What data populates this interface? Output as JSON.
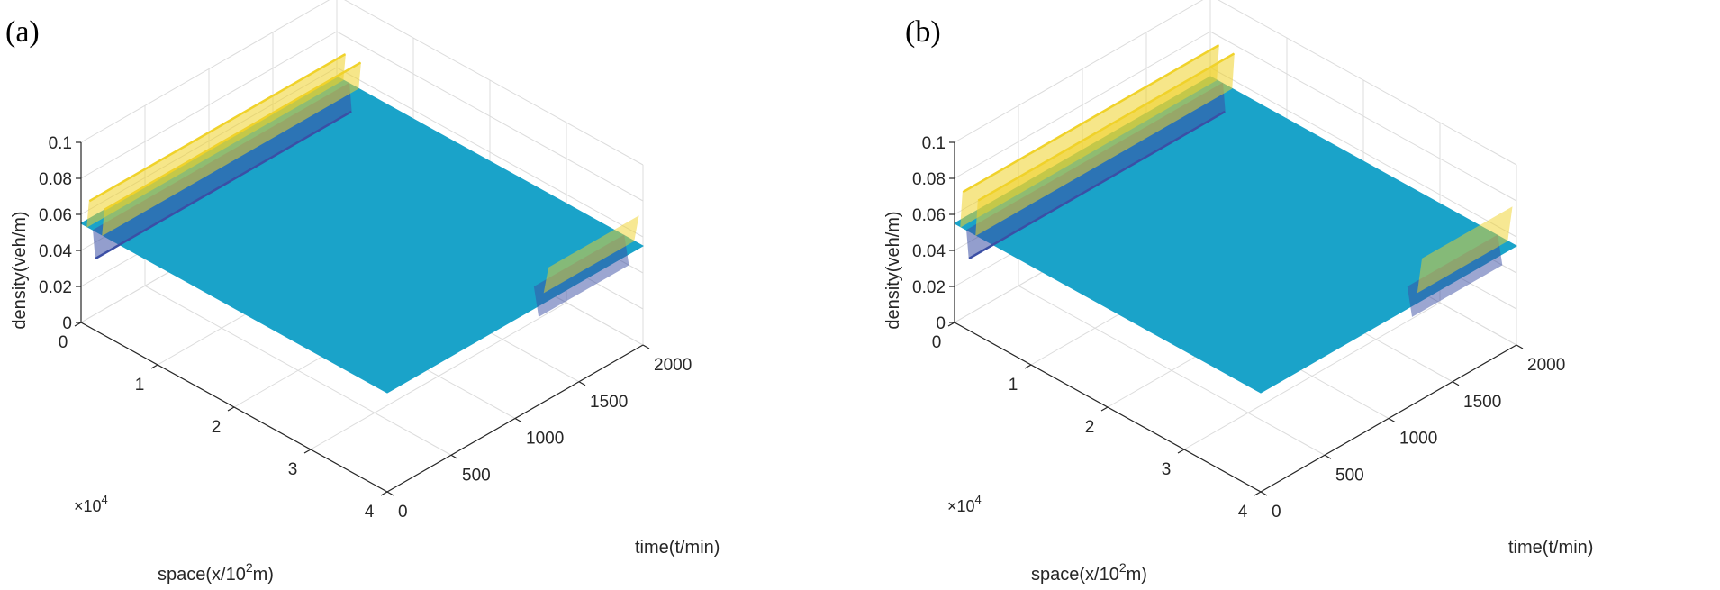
{
  "chart_data": [
    {
      "type": "surface",
      "panel_label": "(a)",
      "xlabel_prefix": "space(x/10",
      "xlabel_sup": "2",
      "xlabel_suffix": "m)",
      "ylabel": "time(t/min)",
      "zlabel": "density(veh/m)",
      "x_multiplier_base": "×10",
      "x_multiplier_exp": "4",
      "x_ticks": [
        "0",
        "1",
        "2",
        "3",
        "4"
      ],
      "y_ticks": [
        "0",
        "500",
        "1000",
        "1500",
        "2000"
      ],
      "z_ticks": [
        "0",
        "0.02",
        "0.04",
        "0.06",
        "0.08",
        "0.1"
      ],
      "xlim": [
        0,
        4
      ],
      "ylim": [
        0,
        2000
      ],
      "zlim": [
        0,
        0.1
      ],
      "grid": true,
      "base_density": 0.055,
      "wave_features": [
        {
          "location": "front edge x≈0",
          "time_start": 0,
          "time_end": 2000,
          "min_density": 0.04,
          "max_density": 0.07
        },
        {
          "location": "back edge x≈4",
          "time_start": 1300,
          "time_end": 2000,
          "min_density": 0.04,
          "max_density": 0.07
        }
      ],
      "colors": {
        "surface": "#1aa3c9",
        "high": "#f0d22a",
        "low": "#3b4fa5"
      }
    },
    {
      "type": "surface",
      "panel_label": "(b)",
      "xlabel_prefix": "space(x/10",
      "xlabel_sup": "2",
      "xlabel_suffix": "m)",
      "ylabel": "time(t/min)",
      "zlabel": "density(veh/m)",
      "x_multiplier_base": "×10",
      "x_multiplier_exp": "4",
      "x_ticks": [
        "0",
        "1",
        "2",
        "3",
        "4"
      ],
      "y_ticks": [
        "0",
        "500",
        "1000",
        "1500",
        "2000"
      ],
      "z_ticks": [
        "0",
        "0.02",
        "0.04",
        "0.06",
        "0.08",
        "0.1"
      ],
      "xlim": [
        0,
        4
      ],
      "ylim": [
        0,
        2000
      ],
      "zlim": [
        0,
        0.1
      ],
      "grid": true,
      "base_density": 0.055,
      "wave_features": [
        {
          "location": "front edge x≈0",
          "time_start": 0,
          "time_end": 2000,
          "min_density": 0.04,
          "max_density": 0.075
        },
        {
          "location": "back edge x≈4",
          "time_start": 1300,
          "time_end": 2000,
          "min_density": 0.04,
          "max_density": 0.075
        }
      ],
      "colors": {
        "surface": "#1aa3c9",
        "high": "#f0d22a",
        "low": "#3b4fa5"
      }
    }
  ]
}
